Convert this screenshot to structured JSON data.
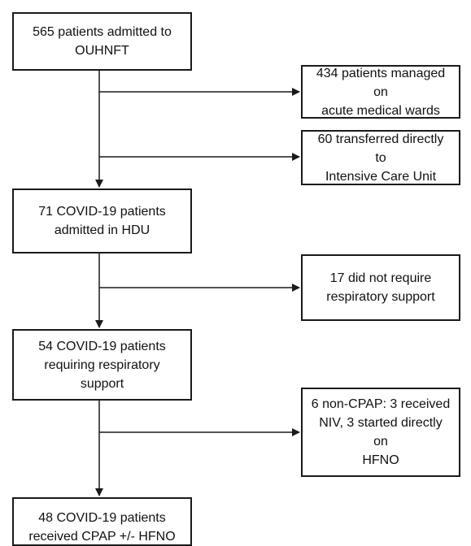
{
  "flowchart": {
    "admitted": {
      "line1": "565 patients admitted to",
      "line2": "OUHNFT"
    },
    "wards": {
      "line1": "434 patients managed on",
      "line2": "acute medical wards"
    },
    "icu": {
      "line1": "60 transferred directly to",
      "line2": "Intensive Care Unit"
    },
    "hdu": {
      "line1": "71 COVID-19 patients",
      "line2": "admitted in HDU"
    },
    "no_resp": {
      "line1": "17 did not require",
      "line2": "respiratory support"
    },
    "resp": {
      "line1": "54 COVID-19 patients",
      "line2": "requiring respiratory",
      "line3": "support"
    },
    "noncpap": {
      "line1": "6 non-CPAP: 3 received",
      "line2": "NIV, 3 started directly on",
      "line3": "HFNO"
    },
    "cpap": {
      "line1": "48 COVID-19 patients",
      "line2": "received CPAP +/- HFNO"
    }
  },
  "colors": {
    "line": "#1a1a1a",
    "background": "#ffffff"
  }
}
